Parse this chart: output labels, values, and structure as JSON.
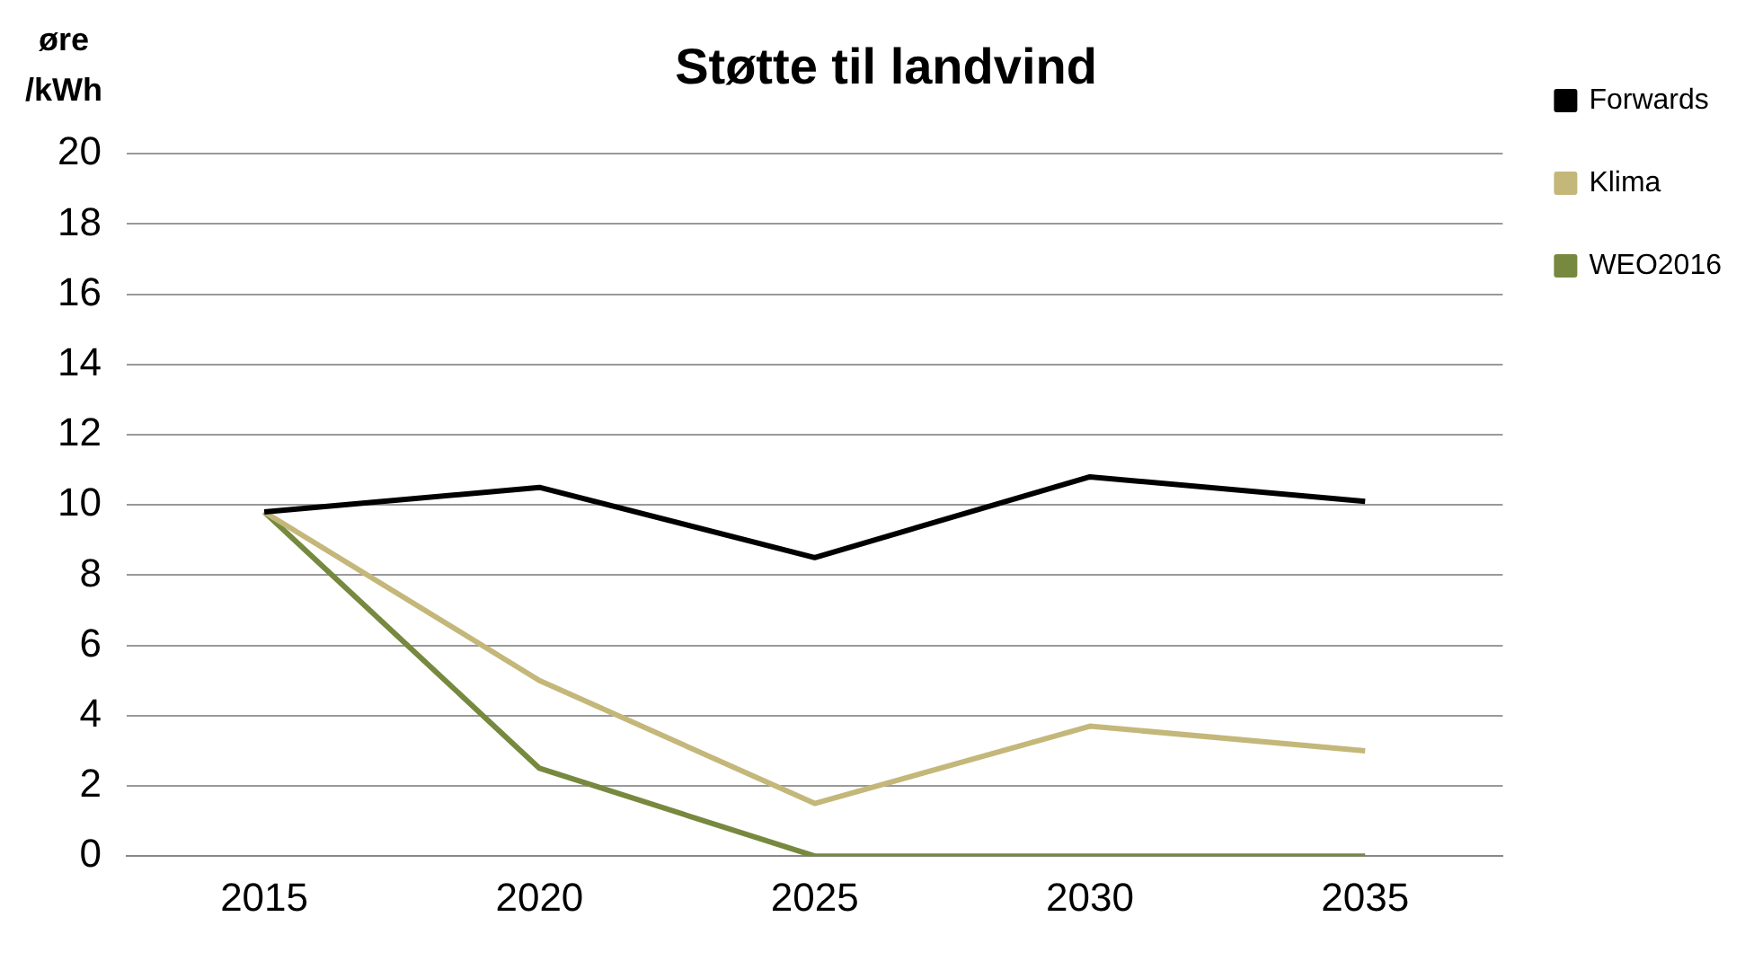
{
  "chart_data": {
    "type": "line",
    "title": "Støtte til landvind",
    "ylabel": "øre\n/kWh",
    "categories": [
      "2015",
      "2020",
      "2025",
      "2030",
      "2035"
    ],
    "series": [
      {
        "name": "Forwards",
        "color": "#000000",
        "values": [
          9.8,
          10.5,
          8.5,
          10.8,
          10.1
        ]
      },
      {
        "name": "Klima",
        "color": "#c4b77a",
        "values": [
          9.8,
          5.0,
          1.5,
          3.7,
          3.0
        ]
      },
      {
        "name": "WEO2016",
        "color": "#76893f",
        "values": [
          9.8,
          2.5,
          0,
          0,
          0
        ]
      }
    ],
    "ylim": [
      0,
      20
    ],
    "yticks": [
      0,
      2,
      4,
      6,
      8,
      10,
      12,
      14,
      16,
      18,
      20
    ],
    "grid": "y",
    "legend": "top right",
    "marker": "none",
    "line_style": "solid"
  }
}
